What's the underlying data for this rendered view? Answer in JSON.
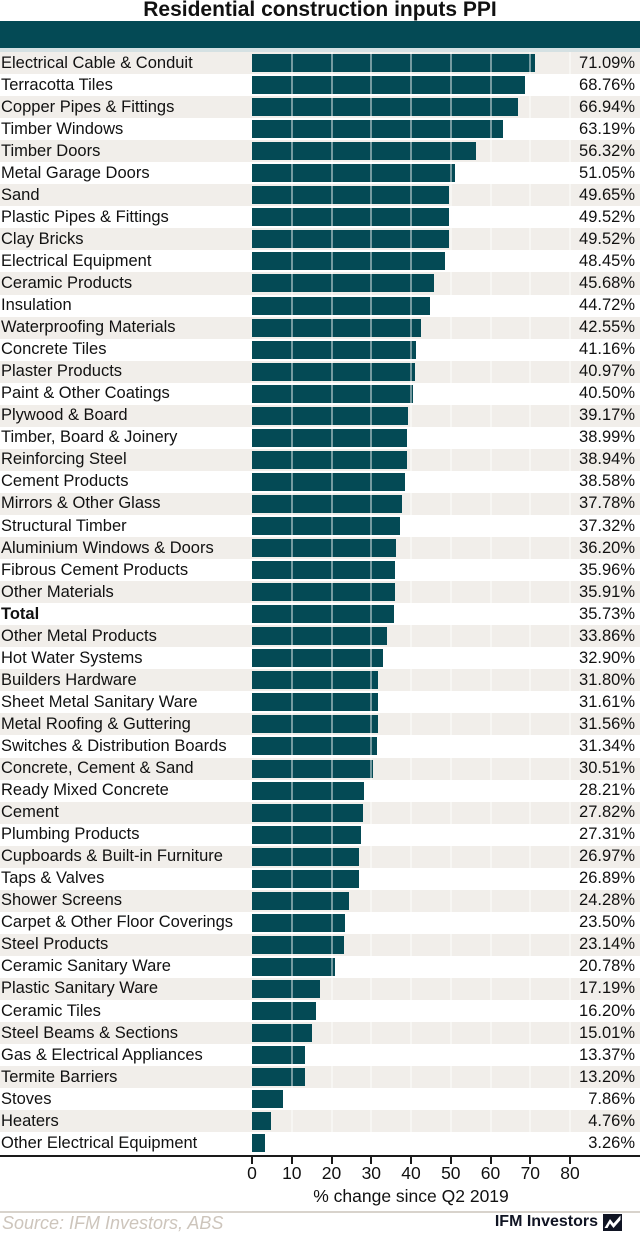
{
  "title": "Residential construction inputs PPI",
  "chart_data": {
    "type": "bar",
    "orientation": "horizontal",
    "title": "Residential construction inputs PPI",
    "xlabel": "% change since Q2 2019",
    "xlim": [
      0,
      80
    ],
    "xticks": [
      0,
      10,
      20,
      30,
      40,
      50,
      60,
      70,
      80
    ],
    "grid": "vertical-white-gridlines-over-alternating-row-bands",
    "legend": "none",
    "bold_category": "Total",
    "categories": [
      "Electrical Cable & Conduit",
      "Terracotta Tiles",
      "Copper Pipes & Fittings",
      "Timber Windows",
      "Timber Doors",
      "Metal Garage Doors",
      "Sand",
      "Plastic Pipes & Fittings",
      "Clay Bricks",
      "Electrical Equipment",
      "Ceramic Products",
      "Insulation",
      "Waterproofing Materials",
      "Concrete Tiles",
      "Plaster Products",
      "Paint & Other Coatings",
      "Plywood & Board",
      "Timber, Board & Joinery",
      "Reinforcing Steel",
      "Cement Products",
      "Mirrors & Other Glass",
      "Structural Timber",
      "Aluminium Windows & Doors",
      "Fibrous Cement Products",
      "Other Materials",
      "Total",
      "Other Metal Products",
      "Hot Water Systems",
      "Builders Hardware",
      "Sheet Metal Sanitary Ware",
      "Metal Roofing & Guttering",
      "Switches & Distribution Boards",
      "Concrete, Cement & Sand",
      "Ready Mixed Concrete",
      "Cement",
      "Plumbing Products",
      "Cupboards & Built-in Furniture",
      "Taps & Valves",
      "Shower Screens",
      "Carpet & Other Floor Coverings",
      "Steel Products",
      "Ceramic Sanitary Ware",
      "Plastic Sanitary Ware",
      "Ceramic Tiles",
      "Steel Beams & Sections",
      "Gas & Electrical Appliances",
      "Termite Barriers",
      "Stoves",
      "Heaters",
      "Other Electrical Equipment"
    ],
    "values": [
      71.09,
      68.76,
      66.94,
      63.19,
      56.32,
      51.05,
      49.65,
      49.52,
      49.52,
      48.45,
      45.68,
      44.72,
      42.55,
      41.16,
      40.97,
      40.5,
      39.17,
      38.99,
      38.94,
      38.58,
      37.78,
      37.32,
      36.2,
      35.96,
      35.91,
      35.73,
      33.86,
      32.9,
      31.8,
      31.61,
      31.56,
      31.34,
      30.51,
      28.21,
      27.82,
      27.31,
      26.97,
      26.89,
      24.28,
      23.5,
      23.14,
      20.78,
      17.19,
      16.2,
      15.01,
      13.37,
      13.2,
      7.86,
      4.76,
      3.26
    ],
    "value_labels": [
      "71.09%",
      "68.76%",
      "66.94%",
      "63.19%",
      "56.32%",
      "51.05%",
      "49.65%",
      "49.52%",
      "49.52%",
      "48.45%",
      "45.68%",
      "44.72%",
      "42.55%",
      "41.16%",
      "40.97%",
      "40.50%",
      "39.17%",
      "38.99%",
      "38.94%",
      "38.58%",
      "37.78%",
      "37.32%",
      "36.20%",
      "35.96%",
      "35.91%",
      "35.73%",
      "33.86%",
      "32.90%",
      "31.80%",
      "31.61%",
      "31.56%",
      "31.34%",
      "30.51%",
      "28.21%",
      "27.82%",
      "27.31%",
      "26.97%",
      "26.89%",
      "24.28%",
      "23.50%",
      "23.14%",
      "20.78%",
      "17.19%",
      "16.20%",
      "15.01%",
      "13.37%",
      "13.20%",
      "7.86%",
      "4.76%",
      "3.26%"
    ]
  },
  "colors": {
    "bar": "#044a55",
    "header_band": "#044a55",
    "header_strip": "#d5e1e3",
    "row_alt": "#f1eeea",
    "axis": "#1a1a1a",
    "source_text": "#cdc5bc",
    "brand_text": "#101423"
  },
  "footer": {
    "source": "Source: IFM Investors, ABS",
    "brand": "IFM Investors"
  }
}
